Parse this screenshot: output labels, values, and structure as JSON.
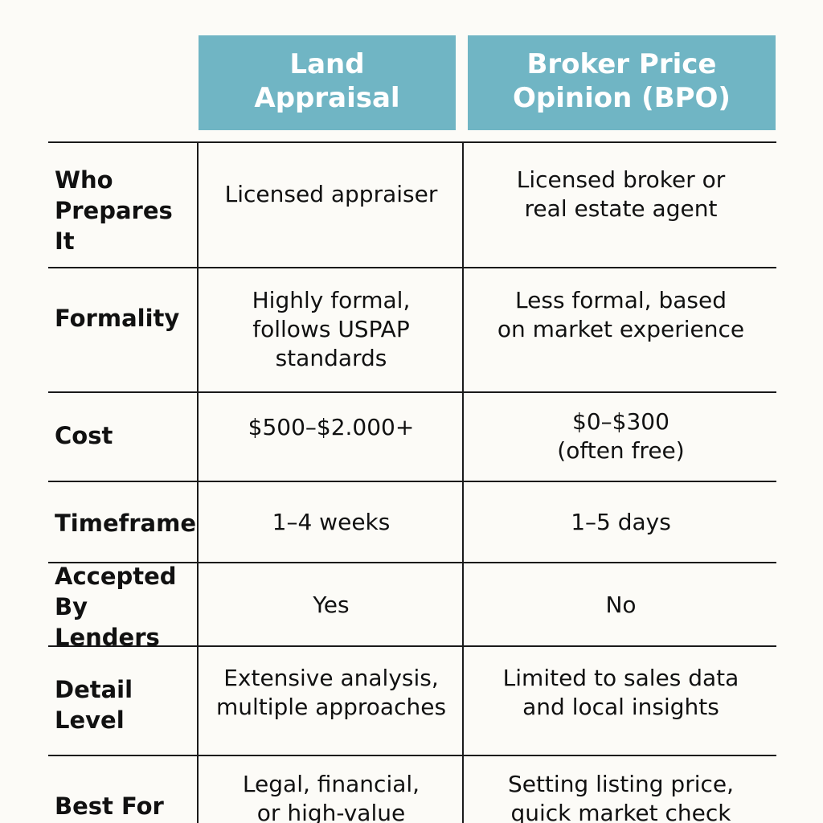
{
  "header": {
    "land_appraisal": "Land\nAppraisal",
    "bpo": "Broker Price\nOpinion (BPO)"
  },
  "rows": [
    {
      "label": "Who\nPrepares\nIt",
      "land": "Licensed appraiser",
      "bpo": "Licensed broker or\nreal estate agent"
    },
    {
      "label": "Formality",
      "land": "Highly formal,\nfollows USPAP\nstandards",
      "bpo": "Less formal, based\non market experience"
    },
    {
      "label": "Cost",
      "land": "$500–$2.000+",
      "bpo": "$0–$300\n(often free)"
    },
    {
      "label": "Timeframe",
      "land": "1–4 weeks",
      "bpo": "1–5 days"
    },
    {
      "label": "Accepted\nBy Lenders",
      "land": "Yes",
      "bpo": "No"
    },
    {
      "label": "Detail\nLevel",
      "land": "Extensive analysis,\nmultiple approaches",
      "bpo": "Limited to sales data\nand local insights"
    },
    {
      "label": "Best For",
      "land": "Legal, financial,\nor high-value",
      "bpo": "Setting listing price,\nquick market check"
    }
  ],
  "colors": {
    "header_bg": "#70b5c4",
    "header_text": "#ffffff",
    "page_bg": "#fcfbf7",
    "rule": "#1a1a1a"
  }
}
